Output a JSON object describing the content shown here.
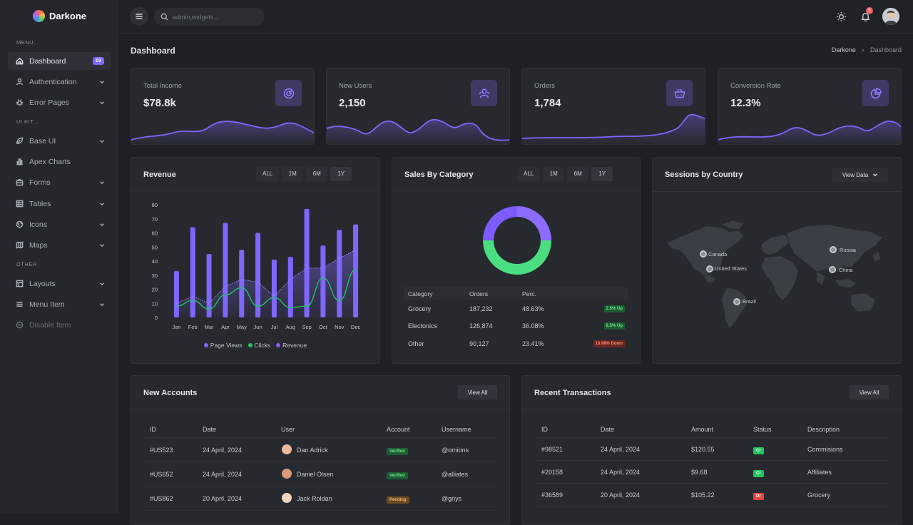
{
  "brand": {
    "name": "Darkone"
  },
  "sidebar": {
    "menu_header": "MENU...",
    "uikit_header": "UI KIT...",
    "other_header": "OTHER",
    "items": [
      {
        "label": "Dashboard",
        "badge": "03",
        "icon": "home-icon"
      },
      {
        "label": "Authentication",
        "icon": "user-icon"
      },
      {
        "label": "Error Pages",
        "icon": "bug-icon"
      },
      {
        "label": "Base UI",
        "icon": "leaf-icon"
      },
      {
        "label": "Apex Charts",
        "icon": "bar-chart-icon"
      },
      {
        "label": "Forms",
        "icon": "briefcase-icon"
      },
      {
        "label": "Tables",
        "icon": "table-icon"
      },
      {
        "label": "Icons",
        "icon": "globe-icon"
      },
      {
        "label": "Maps",
        "icon": "map-icon"
      },
      {
        "label": "Layouts",
        "icon": "layout-icon"
      },
      {
        "label": "Menu Item",
        "icon": "menu-icon"
      },
      {
        "label": "Disable Item",
        "icon": "disabled-icon"
      }
    ]
  },
  "topbar": {
    "search_placeholder": "admin,widgets...",
    "notification_count": "5"
  },
  "page": {
    "title": "Dashboard",
    "breadcrumb": [
      "Darkone",
      "Dashboard"
    ]
  },
  "stats": [
    {
      "label": "Total Income",
      "value": "$78.8k",
      "icon": "target-icon"
    },
    {
      "label": "New Users",
      "value": "2,150",
      "icon": "users-icon"
    },
    {
      "label": "Orders",
      "value": "1,784",
      "icon": "basket-icon"
    },
    {
      "label": "Conversion Rate",
      "value": "12.3%",
      "icon": "pie-icon"
    }
  ],
  "ranges": [
    "ALL",
    "1M",
    "6M",
    "1Y"
  ],
  "revenue": {
    "title": "Revenue",
    "legend": [
      "Page Views",
      "Clicks",
      "Revenue"
    ]
  },
  "chart_data": {
    "type": "bar",
    "categories": [
      "Jan",
      "Feb",
      "Mar",
      "Apr",
      "May",
      "Jun",
      "Jul",
      "Aug",
      "Sep",
      "Oct",
      "Nov",
      "Dec"
    ],
    "ylim": [
      0,
      80
    ],
    "yticks": [
      0,
      10,
      20,
      30,
      40,
      50,
      60,
      70,
      80
    ],
    "series": [
      {
        "name": "Page Views",
        "type": "bar",
        "values": [
          33,
          64,
          45,
          67,
          48,
          60,
          41,
          43,
          77,
          51,
          62,
          66
        ]
      },
      {
        "name": "Clicks",
        "type": "line",
        "values": [
          8,
          12,
          6,
          16,
          21,
          8,
          14,
          7,
          8,
          28,
          12,
          34
        ]
      },
      {
        "name": "Revenue",
        "type": "area",
        "values": [
          10,
          15,
          10,
          22,
          27,
          25,
          15,
          27,
          35,
          35,
          42,
          48
        ]
      }
    ],
    "colors": {
      "Page Views": "#7e67fe",
      "Clicks": "#22c55e",
      "Revenue": "#7e67fe"
    }
  },
  "sales": {
    "title": "Sales By Category",
    "headers": [
      "Category",
      "Orders",
      "Perc."
    ],
    "rows": [
      {
        "category": "Grocery",
        "orders": "187,232",
        "perc": "48.63%",
        "trend": "2.5% Up",
        "dir": "up"
      },
      {
        "category": "Electonics",
        "orders": "126,874",
        "perc": "36.08%",
        "trend": "8.5% Up",
        "dir": "up"
      },
      {
        "category": "Other",
        "orders": "90,127",
        "perc": "23.41%",
        "trend": "10.98% Down",
        "dir": "down"
      }
    ]
  },
  "sessions": {
    "title": "Sessions by Country",
    "button": "View Data",
    "countries": [
      "Canada",
      "United States",
      "Russia",
      "China",
      "Brazil"
    ]
  },
  "accounts": {
    "title": "New Accounts",
    "button": "View All",
    "headers": [
      "ID",
      "Date",
      "User",
      "Account",
      "Username"
    ],
    "rows": [
      {
        "id": "#US523",
        "date": "24 April, 2024",
        "user": "Dan Adrick",
        "account": "Verified",
        "username": "@omions",
        "status": "green"
      },
      {
        "id": "#US652",
        "date": "24 April, 2024",
        "user": "Daniel Olsen",
        "account": "Verified",
        "username": "@alliates",
        "status": "green"
      },
      {
        "id": "#US862",
        "date": "20 April, 2024",
        "user": "Jack Roldan",
        "account": "Pending",
        "username": "@griys",
        "status": "orange"
      }
    ]
  },
  "transactions": {
    "title": "Recent Transactions",
    "button": "View All",
    "headers": [
      "ID",
      "Date",
      "Amount",
      "Status",
      "Description"
    ],
    "rows": [
      {
        "id": "#98521",
        "date": "24 April, 2024",
        "amount": "$120.55",
        "status": "Cr",
        "description": "Commisions",
        "color": "green"
      },
      {
        "id": "#20158",
        "date": "24 April, 2024",
        "amount": "$9.68",
        "status": "Cr",
        "description": "Affiliates",
        "color": "green"
      },
      {
        "id": "#36589",
        "date": "20 April, 2024",
        "amount": "$105.22",
        "status": "Dr",
        "description": "Grocery",
        "color": "red"
      }
    ]
  }
}
